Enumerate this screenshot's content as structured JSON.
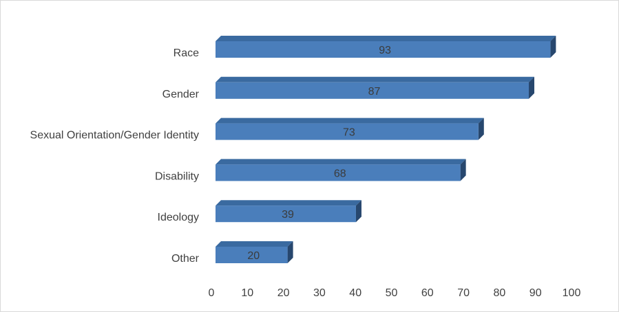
{
  "chart_data": {
    "type": "bar",
    "orientation": "horizontal",
    "style": "3d",
    "categories": [
      "Race",
      "Gender",
      "Sexual Orientation/Gender Identity",
      "Disability",
      "Ideology",
      "Other"
    ],
    "values": [
      93,
      87,
      73,
      68,
      39,
      20
    ],
    "data_labels": [
      "93",
      "87",
      "73",
      "68",
      "39",
      "20"
    ],
    "x_ticks": [
      "0",
      "10",
      "20",
      "30",
      "40",
      "50",
      "60",
      "70",
      "80",
      "90",
      "100"
    ],
    "xlim": [
      0,
      100
    ],
    "grid": false,
    "legend": "none",
    "colors": {
      "bar_front": "#4a7ebb",
      "bar_top": "#3a6aa0",
      "bar_side": "#27476e",
      "text": "#404040"
    }
  }
}
